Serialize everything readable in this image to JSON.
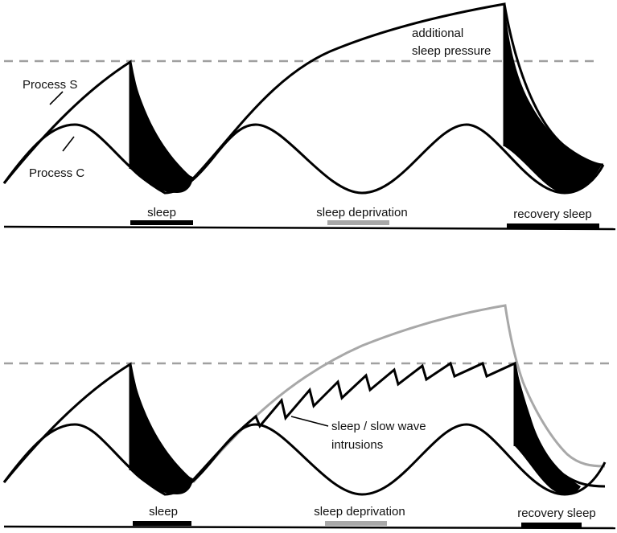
{
  "panels": [
    {
      "id": "top",
      "labels": {
        "process_s": "Process S",
        "process_c": "Process C",
        "additional": "additional",
        "sleep_pressure": "sleep pressure"
      },
      "bars": {
        "sleep": "sleep",
        "deprivation": "sleep deprivation",
        "recovery": "recovery sleep"
      }
    },
    {
      "id": "bottom",
      "labels": {
        "intrusions_line1": "sleep / slow wave",
        "intrusions_line2": "intrusions"
      },
      "bars": {
        "sleep": "sleep",
        "deprivation": "sleep deprivation",
        "recovery": "recovery sleep"
      }
    }
  ],
  "colors": {
    "curve": "#000000",
    "threshold": "#a0a0a0",
    "sleep_bar": "#000000",
    "deprivation_bar": "#a8a8a8",
    "no_intrusion_curve": "#a8a8a8",
    "shading": "#000000"
  }
}
